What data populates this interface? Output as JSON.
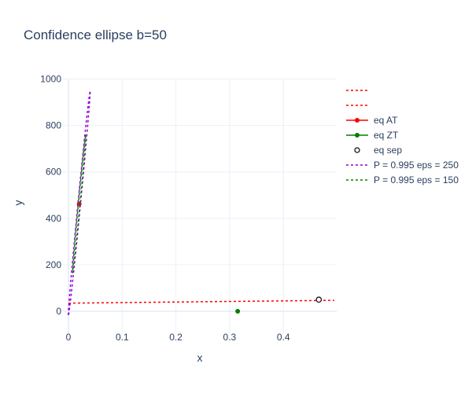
{
  "chart_data": {
    "type": "scatter",
    "title": "Confidence ellipse b=50",
    "xlabel": "x",
    "ylabel": "y",
    "xlim": [
      0,
      0.5
    ],
    "ylim": [
      -80,
      1000
    ],
    "xticks": [
      0,
      0.1,
      0.2,
      0.3,
      0.4
    ],
    "xtick_labels": [
      "0",
      "0.1",
      "0.2",
      "0.3",
      "0.4"
    ],
    "yticks": [
      0,
      200,
      400,
      600,
      800,
      1000
    ],
    "ytick_labels": [
      "0",
      "200",
      "400",
      "600",
      "800",
      "1000"
    ],
    "grid": true,
    "legend_position": "right",
    "series": [
      {
        "legend_label": "",
        "mode": "lines",
        "dash": "dot",
        "color": "#ff0000",
        "x": [
          0,
          0.5
        ],
        "y": [
          35,
          47
        ]
      },
      {
        "legend_label": "",
        "mode": "lines",
        "dash": "dot",
        "color": "#ff0000",
        "x": [],
        "y": []
      },
      {
        "legend_label": "eq AT",
        "mode": "lines+markers",
        "color": "#ff0000",
        "x": [
          0.02
        ],
        "y": [
          462
        ]
      },
      {
        "legend_label": "eq ZT",
        "mode": "lines+markers",
        "color": "#008000",
        "x": [
          0.315
        ],
        "y": [
          0
        ]
      },
      {
        "legend_label": "eq sep",
        "mode": "markers",
        "marker": "open-circle",
        "color": "#000000",
        "x": [
          0.466
        ],
        "y": [
          50
        ]
      },
      {
        "legend_label": "P = 0.995 eps = 250",
        "mode": "lines",
        "dash": "dot",
        "color": "#9400d3",
        "ellipse": {
          "cx": 0.02,
          "cy": 462,
          "dx": 0.0202,
          "dy": 482.7,
          "width": 0.0024
        }
      },
      {
        "legend_label": "P = 0.995 eps = 150",
        "mode": "lines",
        "dash": "dot",
        "color": "#008000",
        "ellipse": {
          "cx": 0.02,
          "cy": 462,
          "dx": 0.0122,
          "dy": 297.5,
          "width": 0.0015
        }
      }
    ]
  }
}
